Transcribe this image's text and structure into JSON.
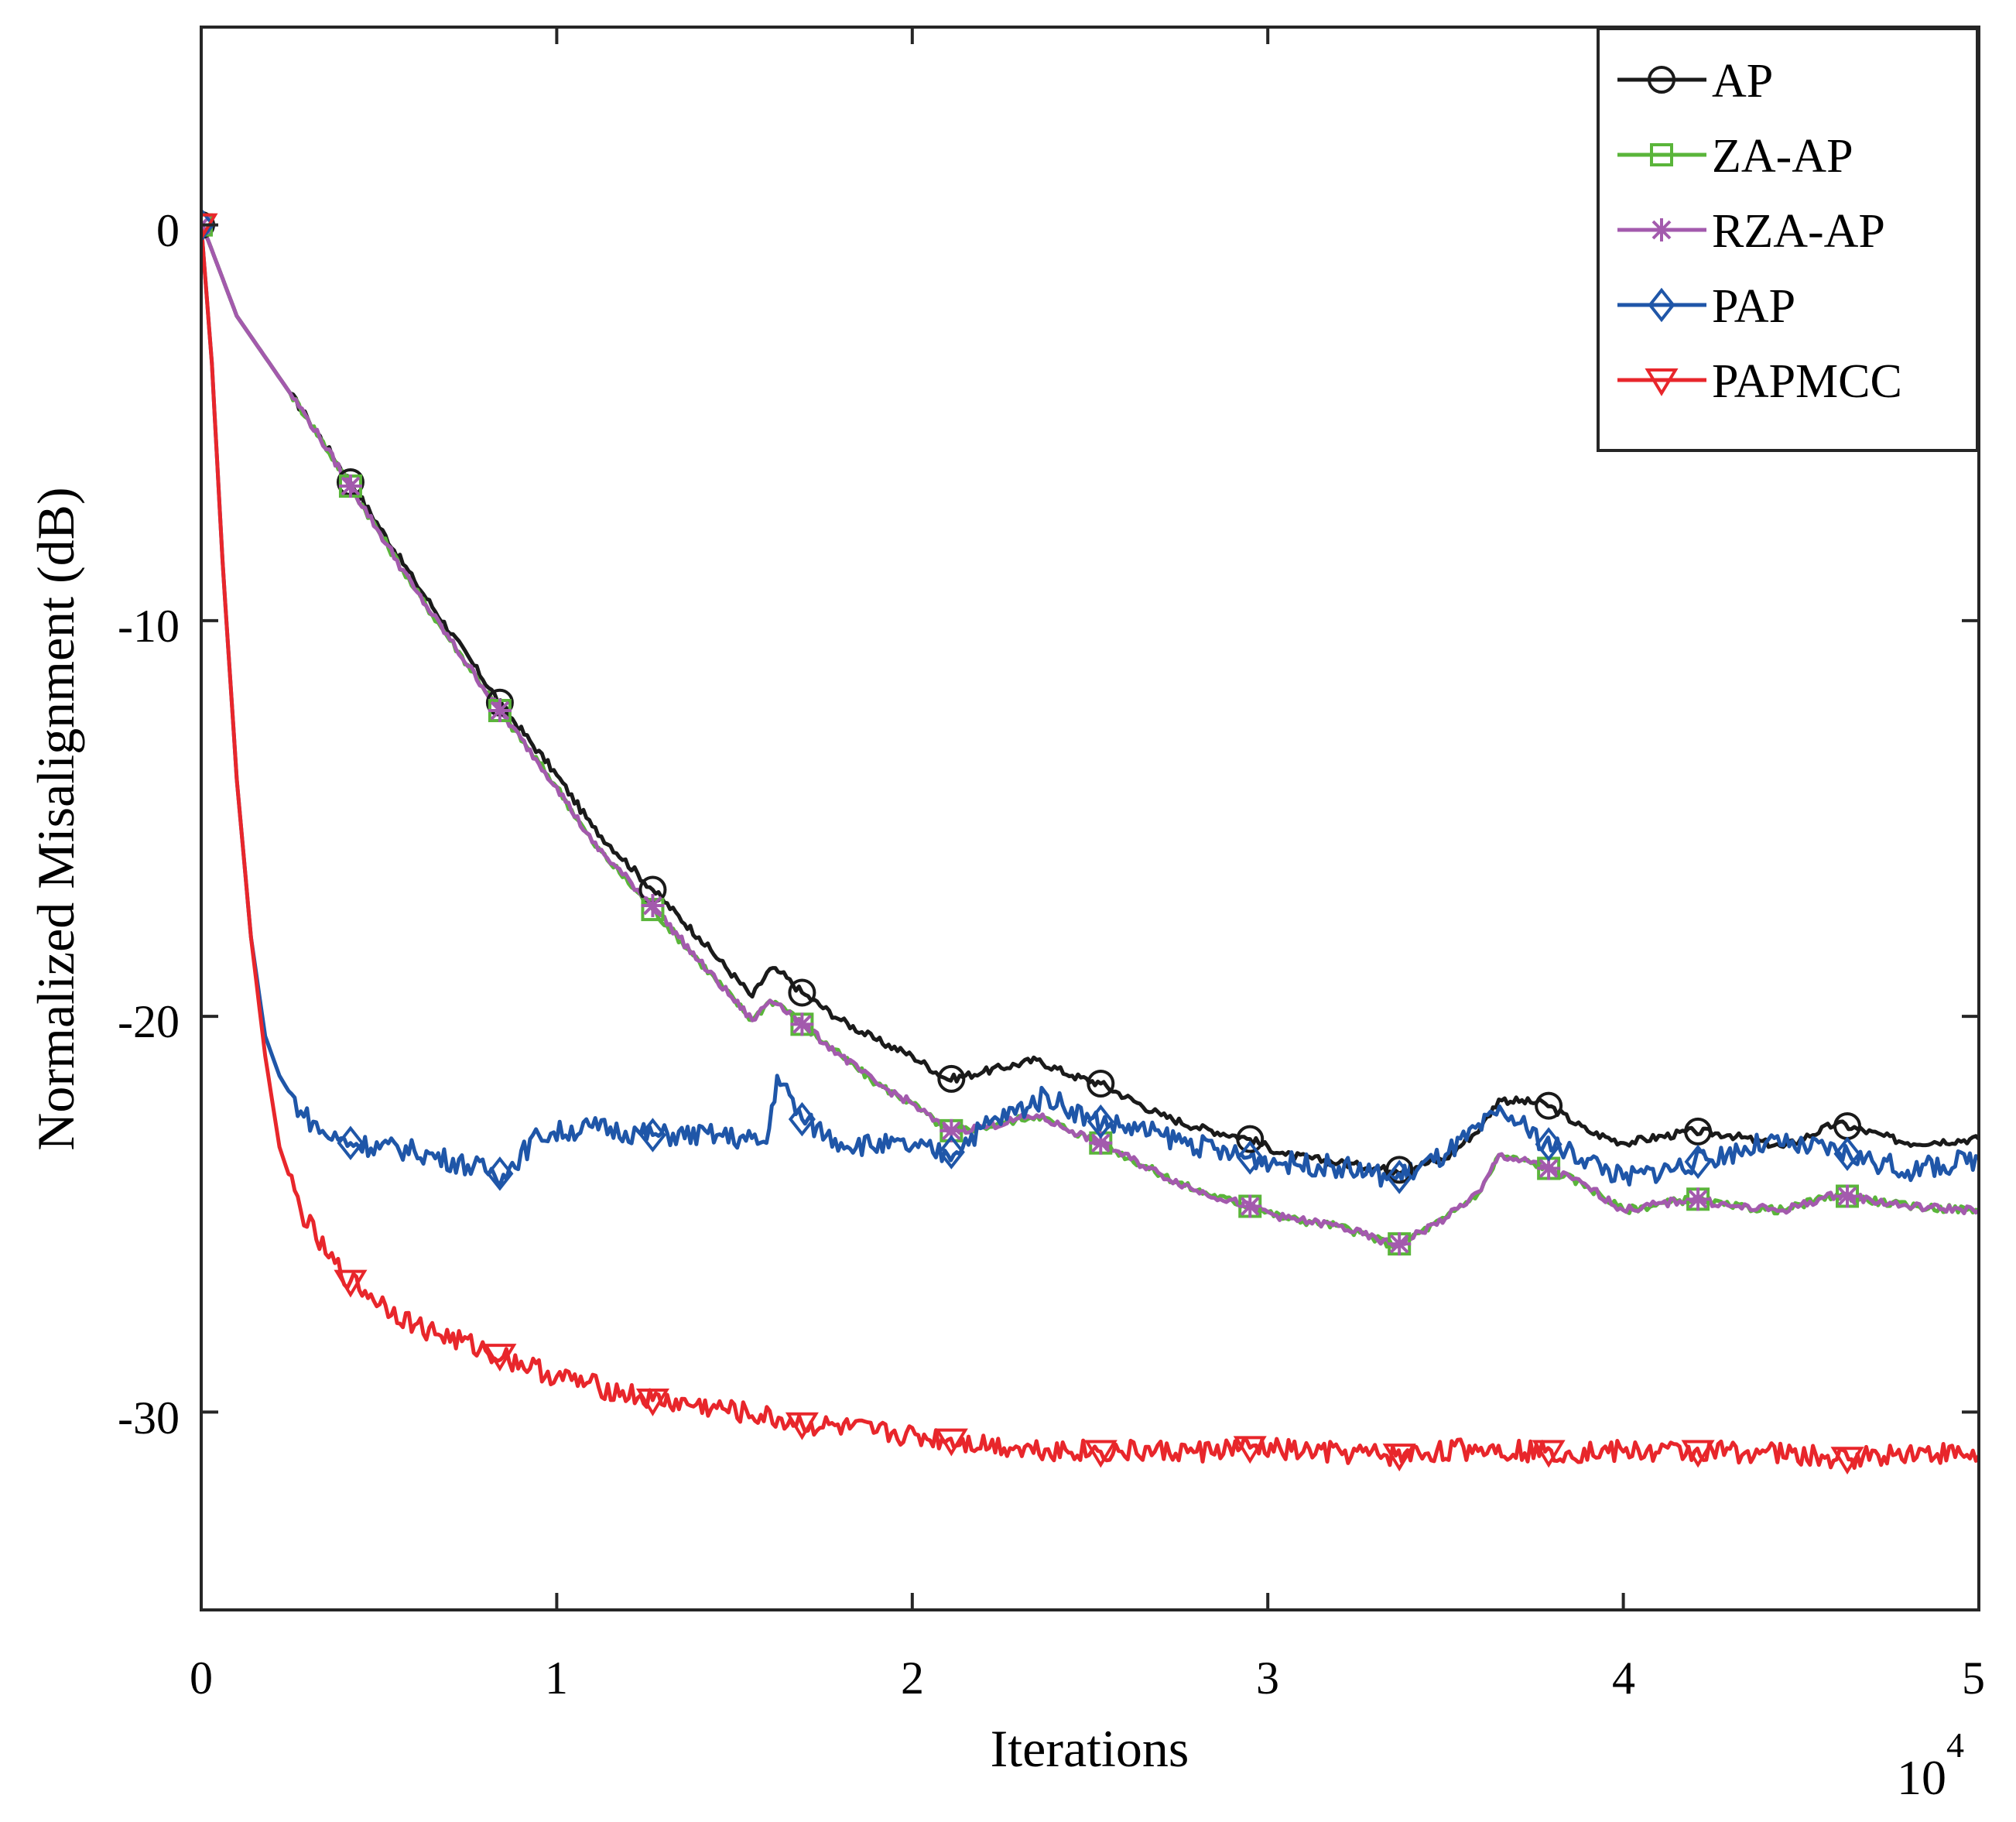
{
  "chart_data": {
    "type": "line",
    "title": "",
    "xlabel": "Iterations",
    "ylabel": "Normalized Misalignment (dB)",
    "x_scale_label": "10",
    "x_scale_exponent": "4",
    "xlim": [
      0,
      5
    ],
    "ylim": [
      -35,
      5
    ],
    "xticks": [
      0,
      1,
      2,
      3,
      4,
      5
    ],
    "xtick_labels": [
      "0",
      "1",
      "2",
      "3",
      "4",
      "5"
    ],
    "yticks": [
      0,
      -10,
      -20,
      -30
    ],
    "ytick_labels": [
      "0",
      "-10",
      "-20",
      "-30"
    ],
    "grid": false,
    "legend_position": "top-right",
    "series": [
      {
        "name": "AP",
        "color": "#1a1a1a",
        "marker": "circle",
        "x": [
          0,
          0.02,
          0.1,
          0.2,
          0.3,
          0.42,
          0.6,
          0.85,
          1.0,
          1.1,
          1.27,
          1.4,
          1.55,
          1.6,
          1.63,
          1.69,
          1.8,
          1.9,
          2.0,
          2.1,
          2.2,
          2.35,
          2.45,
          2.53,
          2.7,
          2.8,
          2.95,
          3.05,
          3.2,
          3.36,
          3.5,
          3.6,
          3.65,
          3.78,
          3.9,
          4.0,
          4.2,
          4.3,
          4.45,
          4.6,
          4.8,
          5.0
        ],
        "y": [
          0,
          -0.4,
          -2.3,
          -3.6,
          -4.9,
          -6.5,
          -9.0,
          -12.2,
          -13.9,
          -15.2,
          -16.8,
          -18.0,
          -19.5,
          -18.8,
          -18.9,
          -19.4,
          -20.1,
          -20.6,
          -21.0,
          -21.6,
          -21.4,
          -21.1,
          -21.5,
          -21.7,
          -22.5,
          -22.8,
          -23.1,
          -23.5,
          -23.7,
          -23.9,
          -23.6,
          -22.8,
          -22.1,
          -22.2,
          -22.9,
          -23.2,
          -22.9,
          -23.0,
          -23.3,
          -22.7,
          -23.2,
          -23.1
        ]
      },
      {
        "name": "ZA-AP",
        "color": "#5ab53a",
        "marker": "square",
        "x": [
          0,
          0.02,
          0.1,
          0.2,
          0.3,
          0.42,
          0.6,
          0.85,
          1.0,
          1.1,
          1.27,
          1.4,
          1.55,
          1.6,
          1.63,
          1.69,
          1.8,
          1.9,
          2.0,
          2.1,
          2.2,
          2.35,
          2.45,
          2.53,
          2.7,
          2.8,
          2.95,
          3.05,
          3.2,
          3.36,
          3.5,
          3.6,
          3.65,
          3.78,
          3.9,
          4.0,
          4.2,
          4.3,
          4.45,
          4.6,
          4.8,
          5.0
        ],
        "y": [
          0,
          -0.4,
          -2.3,
          -3.6,
          -4.9,
          -6.6,
          -9.2,
          -12.4,
          -14.2,
          -15.6,
          -17.3,
          -18.6,
          -20.1,
          -19.6,
          -19.7,
          -20.2,
          -21.0,
          -21.7,
          -22.2,
          -22.9,
          -22.8,
          -22.5,
          -22.9,
          -23.2,
          -24.0,
          -24.4,
          -24.8,
          -25.1,
          -25.3,
          -25.8,
          -25.1,
          -24.4,
          -23.5,
          -23.8,
          -24.3,
          -24.9,
          -24.6,
          -24.8,
          -24.9,
          -24.5,
          -24.8,
          -24.9
        ]
      },
      {
        "name": "RZA-AP",
        "color": "#a35aad",
        "marker": "asterisk",
        "x": [
          0,
          0.02,
          0.1,
          0.2,
          0.3,
          0.42,
          0.6,
          0.85,
          1.0,
          1.1,
          1.27,
          1.4,
          1.55,
          1.6,
          1.63,
          1.69,
          1.8,
          1.9,
          2.0,
          2.1,
          2.2,
          2.35,
          2.45,
          2.53,
          2.7,
          2.8,
          2.95,
          3.05,
          3.2,
          3.36,
          3.5,
          3.6,
          3.65,
          3.78,
          3.9,
          4.0,
          4.2,
          4.3,
          4.45,
          4.6,
          4.8,
          5.0
        ],
        "y": [
          0,
          -0.4,
          -2.3,
          -3.6,
          -4.9,
          -6.6,
          -9.2,
          -12.4,
          -14.2,
          -15.6,
          -17.2,
          -18.6,
          -20.1,
          -19.6,
          -19.7,
          -20.2,
          -21.0,
          -21.7,
          -22.2,
          -22.9,
          -22.8,
          -22.5,
          -22.9,
          -23.2,
          -24.0,
          -24.4,
          -24.8,
          -25.1,
          -25.3,
          -25.8,
          -25.1,
          -24.4,
          -23.5,
          -23.8,
          -24.3,
          -24.9,
          -24.6,
          -24.8,
          -24.9,
          -24.5,
          -24.8,
          -24.9
        ]
      },
      {
        "name": "PAP",
        "color": "#1f56a8",
        "marker": "diamond",
        "x": [
          0,
          0.03,
          0.06,
          0.1,
          0.14,
          0.18,
          0.22,
          0.28,
          0.35,
          0.42,
          0.6,
          0.85,
          0.95,
          1.1,
          1.27,
          1.45,
          1.59,
          1.62,
          1.69,
          1.8,
          2.0,
          2.1,
          2.2,
          2.38,
          2.5,
          2.7,
          2.9,
          3.05,
          3.2,
          3.36,
          3.5,
          3.66,
          3.78,
          3.9,
          4.0,
          4.2,
          4.4,
          4.6,
          4.8,
          5.0
        ],
        "y": [
          0,
          -3.5,
          -8.5,
          -14.0,
          -18.0,
          -20.5,
          -21.5,
          -22.4,
          -23.0,
          -23.2,
          -23.4,
          -24.0,
          -23.0,
          -22.8,
          -23.0,
          -23.0,
          -23.2,
          -21.5,
          -22.6,
          -23.2,
          -23.3,
          -23.5,
          -22.8,
          -22.0,
          -22.6,
          -23.0,
          -23.5,
          -23.7,
          -23.8,
          -24.1,
          -23.5,
          -22.4,
          -23.2,
          -23.6,
          -24.1,
          -23.7,
          -23.2,
          -23.4,
          -23.9,
          -23.6
        ]
      },
      {
        "name": "PAPMCC",
        "color": "#e8262b",
        "marker": "triangle-down",
        "x": [
          0,
          0.03,
          0.06,
          0.1,
          0.14,
          0.18,
          0.22,
          0.28,
          0.35,
          0.42,
          0.6,
          0.85,
          1.0,
          1.27,
          1.45,
          1.69,
          1.9,
          2.1,
          2.3,
          2.53,
          2.8,
          2.95,
          3.1,
          3.36,
          3.6,
          3.78,
          4.0,
          4.2,
          4.4,
          4.6,
          4.8,
          5.0
        ],
        "y": [
          0,
          -3.5,
          -8.5,
          -14.0,
          -18.0,
          -21.0,
          -23.3,
          -24.9,
          -26.0,
          -26.7,
          -27.8,
          -28.6,
          -29.1,
          -29.7,
          -29.9,
          -30.3,
          -30.5,
          -30.7,
          -30.9,
          -31.0,
          -31.0,
          -30.9,
          -31.0,
          -31.1,
          -30.9,
          -31.0,
          -31.0,
          -31.0,
          -31.0,
          -31.2,
          -31.0,
          -31.1
        ]
      }
    ]
  }
}
